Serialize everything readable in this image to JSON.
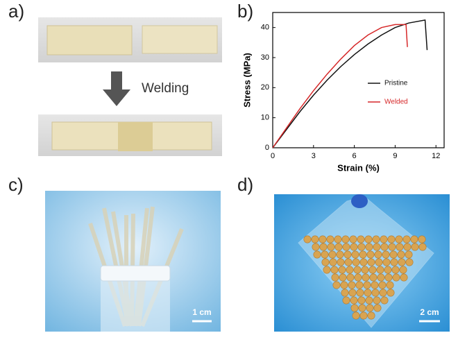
{
  "panel_labels": [
    "a)",
    "b)",
    "c)",
    "d)"
  ],
  "welding_label": "Welding",
  "scale_bars": [
    "1 cm",
    "2 cm"
  ],
  "chart_data": {
    "type": "line",
    "x_label": "Strain (%)",
    "y_label": "Stress (MPa)",
    "xlim": [
      0,
      12.6
    ],
    "ylim": [
      0,
      45
    ],
    "xticks": [
      0,
      3,
      6,
      9,
      12
    ],
    "yticks": [
      0,
      10,
      20,
      30,
      40
    ],
    "series": [
      {
        "name": "Pristine",
        "color": "#111111",
        "x": [
          0,
          1,
          2,
          3,
          4,
          5,
          6,
          7,
          8,
          9,
          10,
          11.2,
          11.35
        ],
        "values": [
          0,
          6,
          12,
          17.5,
          22.5,
          27,
          31,
          34.5,
          37.5,
          40,
          41.5,
          42.5,
          32.5
        ]
      },
      {
        "name": "Welded",
        "color": "#d62728",
        "x": [
          0,
          1,
          2,
          3,
          4,
          5,
          6,
          7,
          8,
          9,
          9.8,
          9.9
        ],
        "values": [
          0,
          6.5,
          13,
          19,
          24.5,
          29.5,
          34,
          37.5,
          40,
          41,
          41,
          33.5
        ]
      }
    ]
  }
}
